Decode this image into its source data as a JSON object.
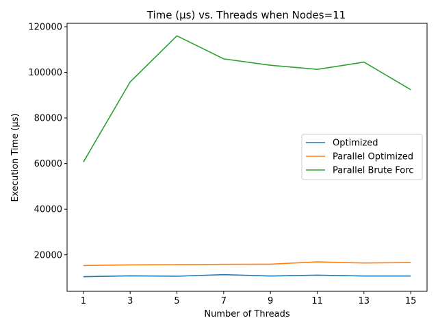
{
  "chart_data": {
    "type": "line",
    "title": "Time (µs) vs. Threads when Nodes=11",
    "xlabel": "Number of Threads",
    "ylabel": "Execution Time (µs)",
    "x": [
      1,
      3,
      5,
      7,
      9,
      11,
      13,
      15
    ],
    "xticks": [
      "1",
      "3",
      "5",
      "7",
      "9",
      "11",
      "13",
      "15"
    ],
    "yticks": [
      "20000",
      "40000",
      "60000",
      "80000",
      "100000",
      "120000"
    ],
    "xlim": [
      0.3,
      15.7
    ],
    "ylim": [
      4000,
      121500
    ],
    "grid": false,
    "legend_position": "center-right",
    "series": [
      {
        "name": "Optimized",
        "color": "#1f77b4",
        "values": [
          10400,
          10800,
          10600,
          11300,
          10700,
          11100,
          10700,
          10700
        ]
      },
      {
        "name": "Parallel Optimized",
        "color": "#ff7f0e",
        "values": [
          15300,
          15600,
          15700,
          15800,
          15900,
          16900,
          16400,
          16600
        ]
      },
      {
        "name": "Parallel Brute Forc",
        "color": "#2ca02c",
        "values": [
          60700,
          95800,
          116000,
          105900,
          103100,
          101300,
          104500,
          92400
        ]
      }
    ]
  }
}
